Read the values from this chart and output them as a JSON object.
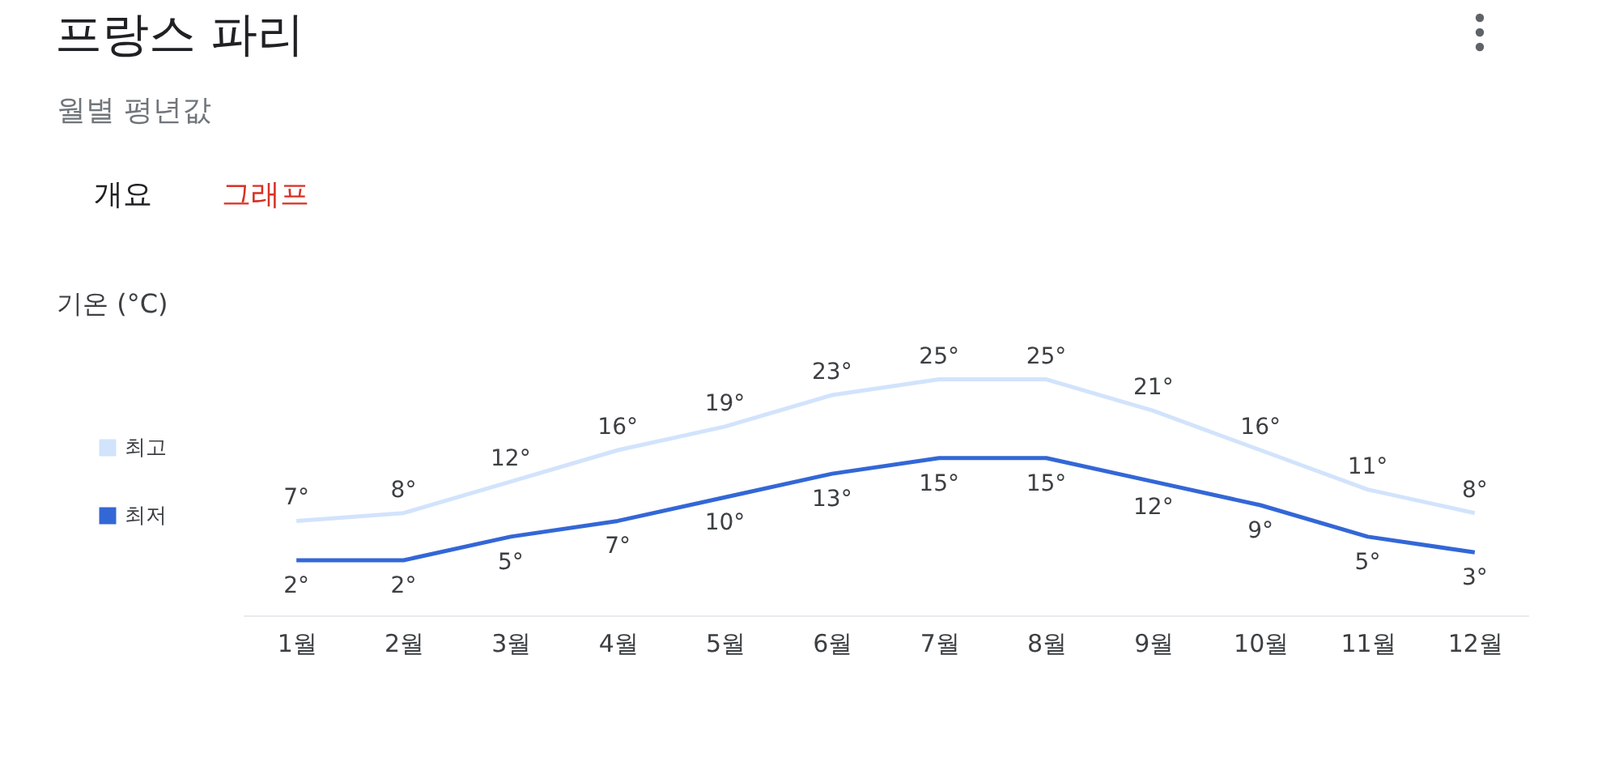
{
  "chart_data": {
    "type": "line",
    "title": "프랑스 파리",
    "subtitle": "월별 평년값",
    "annotations": [
      "개요",
      "그래프",
      "기온 (°C)"
    ],
    "categories": [
      "1월",
      "2월",
      "3월",
      "4월",
      "5월",
      "6월",
      "7월",
      "8월",
      "9월",
      "10월",
      "11월",
      "12월"
    ],
    "series": [
      {
        "name": "최고",
        "color": "#d2e3fc",
        "values": [
          7,
          8,
          12,
          16,
          19,
          23,
          25,
          25,
          21,
          16,
          11,
          8
        ],
        "value_labels": [
          "7°",
          "8°",
          "12°",
          "16°",
          "19°",
          "23°",
          "25°",
          "25°",
          "21°",
          "16°",
          "11°",
          "8°"
        ]
      },
      {
        "name": "최저",
        "color": "#3367d6",
        "values": [
          2,
          2,
          5,
          7,
          10,
          13,
          15,
          15,
          12,
          9,
          5,
          3
        ],
        "value_labels": [
          "2°",
          "2°",
          "5°",
          "7°",
          "10°",
          "13°",
          "15°",
          "15°",
          "12°",
          "9°",
          "5°",
          "3°"
        ]
      }
    ],
    "legend": "left",
    "grid": false,
    "marker": "none",
    "line_style": "solid"
  }
}
